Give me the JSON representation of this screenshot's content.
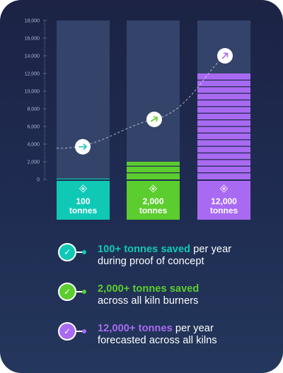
{
  "chart_data": {
    "type": "bar",
    "categories": [
      "100 tonnes",
      "2,000 tonnes",
      "12,000 tonnes"
    ],
    "values": [
      100,
      2000,
      12000
    ],
    "box_values": [
      "100",
      "2,000",
      "12,000"
    ],
    "box_units": [
      "tonnes",
      "tonnes",
      "tonnes"
    ],
    "background_max": 18000,
    "y_ticks": [
      0,
      2000,
      4000,
      6000,
      8000,
      10000,
      12000,
      14000,
      16000,
      18000
    ],
    "y_tick_labels": [
      "0",
      "2,000",
      "4,000",
      "6,000",
      "8,000",
      "10,000",
      "12,000",
      "14,000",
      "16,000",
      "18,000"
    ],
    "ylim": [
      0,
      18000
    ],
    "stack_segment_tonnes": 750,
    "trend_markers": [
      3700,
      6800,
      14000
    ],
    "grid": false,
    "legend": "none",
    "colors": [
      "#0fc9b6",
      "#5ccd2e",
      "#a96af2"
    ]
  },
  "stats": [
    {
      "highlight": "100+ tonnes saved",
      "rest": " per year",
      "line2": "during proof of concept",
      "color": "#0fc9b6",
      "icon": "check-icon"
    },
    {
      "highlight": "2,000+ tonnes saved",
      "rest": "",
      "line2": "across all kiln burners",
      "color": "#5ccd2e",
      "icon": "check-icon"
    },
    {
      "highlight": "12,000+ tonnes",
      "rest": " per year",
      "line2": "forecasted across all kilns",
      "color": "#a96af2",
      "icon": "check-icon"
    }
  ]
}
